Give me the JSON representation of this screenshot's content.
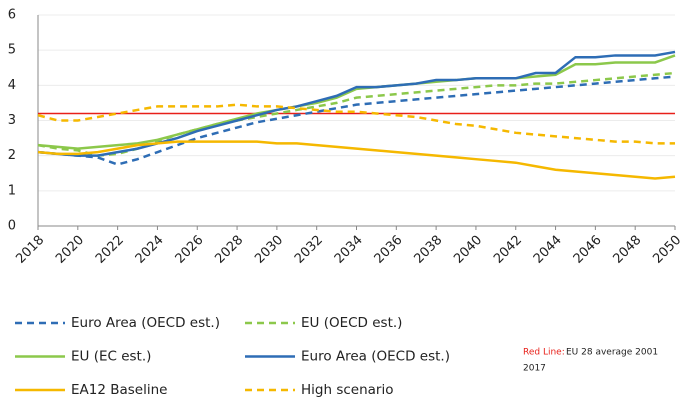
{
  "chart_data": {
    "type": "line",
    "x": [
      2018,
      2019,
      2020,
      2021,
      2022,
      2023,
      2024,
      2025,
      2026,
      2027,
      2028,
      2029,
      2030,
      2031,
      2032,
      2033,
      2034,
      2035,
      2036,
      2037,
      2038,
      2039,
      2040,
      2041,
      2042,
      2043,
      2044,
      2045,
      2046,
      2047,
      2048,
      2049,
      2050
    ],
    "xlim": [
      2018,
      2050
    ],
    "xticks": [
      2018,
      2020,
      2022,
      2024,
      2026,
      2028,
      2030,
      2032,
      2034,
      2036,
      2038,
      2040,
      2042,
      2044,
      2046,
      2048,
      2050
    ],
    "ylim": [
      0,
      6
    ],
    "yticks": [
      0,
      1,
      2,
      3,
      4,
      5,
      6
    ],
    "grid": true,
    "reference_line": {
      "value": 3.2,
      "color": "#e8201a"
    },
    "series": [
      {
        "name": "Euro Area (OECD est.)",
        "color": "#2e6db5",
        "dash": true,
        "values": [
          2.1,
          2.05,
          2.0,
          1.95,
          1.75,
          1.9,
          2.1,
          2.3,
          2.5,
          2.65,
          2.8,
          2.95,
          3.05,
          3.15,
          3.25,
          3.35,
          3.45,
          3.5,
          3.55,
          3.6,
          3.65,
          3.7,
          3.75,
          3.8,
          3.85,
          3.9,
          3.95,
          4.0,
          4.05,
          4.1,
          4.15,
          4.2,
          4.25
        ]
      },
      {
        "name": "EU (OECD est.)",
        "color": "#8cc84b",
        "dash": true,
        "values": [
          2.3,
          2.2,
          2.15,
          2.0,
          2.05,
          2.2,
          2.4,
          2.6,
          2.75,
          2.9,
          3.0,
          3.1,
          3.2,
          3.3,
          3.4,
          3.5,
          3.65,
          3.7,
          3.75,
          3.8,
          3.85,
          3.9,
          3.95,
          4.0,
          4.0,
          4.05,
          4.05,
          4.1,
          4.15,
          4.2,
          4.25,
          4.3,
          4.35
        ]
      },
      {
        "name": "EU (EC est.)",
        "color": "#8cc84b",
        "dash": false,
        "values": [
          2.3,
          2.25,
          2.2,
          2.25,
          2.3,
          2.35,
          2.45,
          2.6,
          2.75,
          2.9,
          3.05,
          3.2,
          3.3,
          3.4,
          3.5,
          3.65,
          3.9,
          3.95,
          4.0,
          4.05,
          4.1,
          4.15,
          4.2,
          4.2,
          4.2,
          4.25,
          4.3,
          4.6,
          4.6,
          4.65,
          4.65,
          4.65,
          4.85
        ]
      },
      {
        "name": "Euro Area (OECD est.)",
        "color": "#2e6db5",
        "dash": false,
        "values": [
          2.1,
          2.05,
          2.0,
          2.0,
          2.1,
          2.2,
          2.35,
          2.5,
          2.7,
          2.85,
          3.0,
          3.15,
          3.3,
          3.4,
          3.55,
          3.7,
          3.95,
          3.95,
          4.0,
          4.05,
          4.15,
          4.15,
          4.2,
          4.2,
          4.2,
          4.35,
          4.35,
          4.8,
          4.8,
          4.85,
          4.85,
          4.85,
          4.95
        ]
      },
      {
        "name": "EA12 Baseline",
        "color": "#f5b800",
        "dash": false,
        "values": [
          2.1,
          2.05,
          2.05,
          2.1,
          2.2,
          2.3,
          2.35,
          2.4,
          2.4,
          2.4,
          2.4,
          2.4,
          2.35,
          2.35,
          2.3,
          2.25,
          2.2,
          2.15,
          2.1,
          2.05,
          2.0,
          1.95,
          1.9,
          1.85,
          1.8,
          1.7,
          1.6,
          1.55,
          1.5,
          1.45,
          1.4,
          1.35,
          1.4
        ]
      },
      {
        "name": "High scenario",
        "color": "#f5b800",
        "dash": true,
        "values": [
          3.15,
          3.0,
          3.0,
          3.1,
          3.2,
          3.3,
          3.4,
          3.4,
          3.4,
          3.4,
          3.45,
          3.4,
          3.4,
          3.35,
          3.3,
          3.25,
          3.25,
          3.2,
          3.15,
          3.1,
          3.0,
          2.9,
          2.85,
          2.75,
          2.65,
          2.6,
          2.55,
          2.5,
          2.45,
          2.4,
          2.4,
          2.35,
          2.35
        ]
      }
    ],
    "annotation": {
      "label": "Red Line:",
      "lines": [
        "EU 28 average 2001",
        "2017"
      ]
    }
  }
}
